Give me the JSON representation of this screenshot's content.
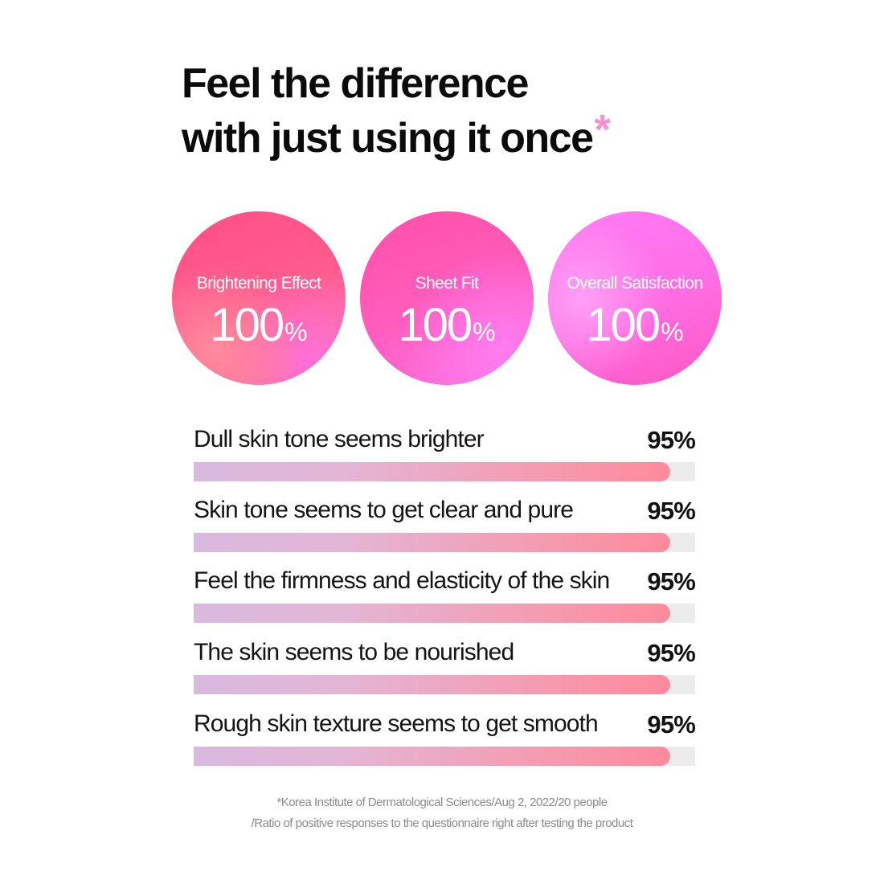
{
  "headline": {
    "line1": "Feel the difference",
    "line2": "with just using it once",
    "asterisk": "*"
  },
  "metrics": [
    {
      "label": "Brightening Effect",
      "value": "100",
      "unit": "%"
    },
    {
      "label": "Sheet Fit",
      "value": "100",
      "unit": "%"
    },
    {
      "label": "Overall Satisfaction",
      "value": "100",
      "unit": "%"
    }
  ],
  "chart_data": {
    "type": "bar",
    "orientation": "horizontal",
    "categories": [
      "Dull skin tone seems brighter",
      "Skin tone seems to get clear and pure",
      "Feel the firmness and elasticity of the skin",
      "The skin seems to be nourished",
      "Rough skin texture seems to get smooth"
    ],
    "values": [
      95,
      95,
      95,
      95,
      95
    ],
    "value_labels": [
      "95%",
      "95%",
      "95%",
      "95%",
      "95%"
    ],
    "xlim": [
      0,
      100
    ],
    "grid": false,
    "colors": {
      "bar_start": "#d9b9e0",
      "bar_end": "#ff8a9c",
      "track": "#ececec"
    }
  },
  "footnote": {
    "line1": "*Korea Institute of Dermatological Sciences/Aug 2, 2022/20 people",
    "line2": "/Ratio of positive responses to the questionnaire right after testing the product"
  },
  "colors": {
    "asterisk": "#f48fd0",
    "circle_1": "#ff5c8d",
    "circle_2": "#ff5cbc",
    "circle_3": "#ff6ee6"
  }
}
